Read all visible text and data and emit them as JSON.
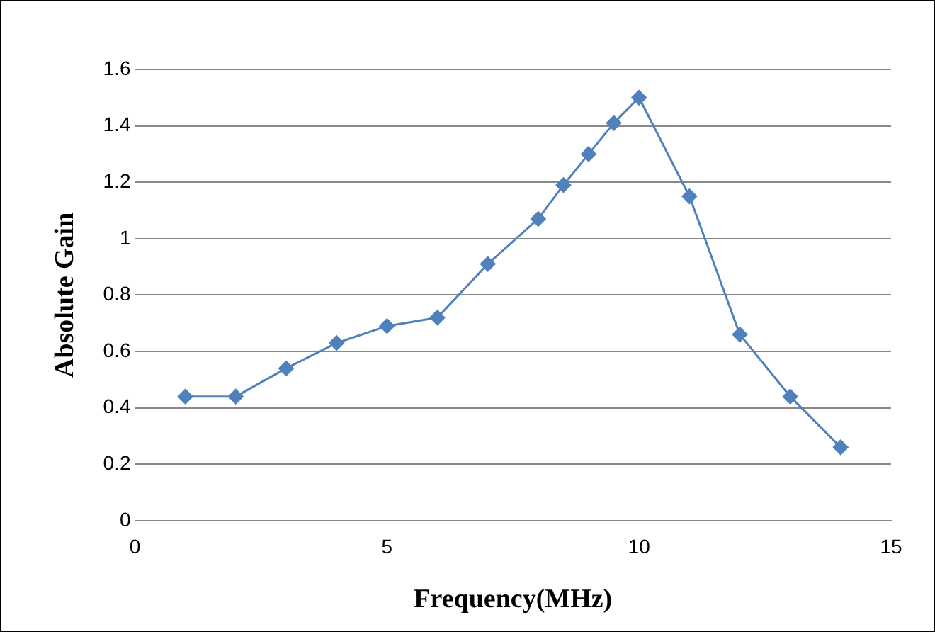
{
  "chart_data": {
    "type": "line",
    "xlabel": "Frequency(MHz)",
    "ylabel": "Absolute Gain",
    "series": [
      {
        "color": "#4f81bd",
        "x": [
          1,
          2,
          3,
          4,
          5,
          6,
          7,
          8,
          8.5,
          9,
          9.5,
          10,
          11,
          12,
          13,
          14
        ],
        "values": [
          0.44,
          0.44,
          0.54,
          0.63,
          0.69,
          0.72,
          0.91,
          1.07,
          1.19,
          1.3,
          1.41,
          1.5,
          1.15,
          0.66,
          0.44,
          0.26
        ]
      }
    ],
    "xlim": [
      0,
      15
    ],
    "xticks": [
      0,
      5,
      10,
      15
    ],
    "ylim": [
      0,
      1.6
    ],
    "yticks": [
      0,
      0.2,
      0.4,
      0.6,
      0.8,
      1,
      1.2,
      1.4,
      1.6
    ],
    "grid": "y",
    "legend": false,
    "marker": "diamond",
    "line_style": "solid"
  }
}
